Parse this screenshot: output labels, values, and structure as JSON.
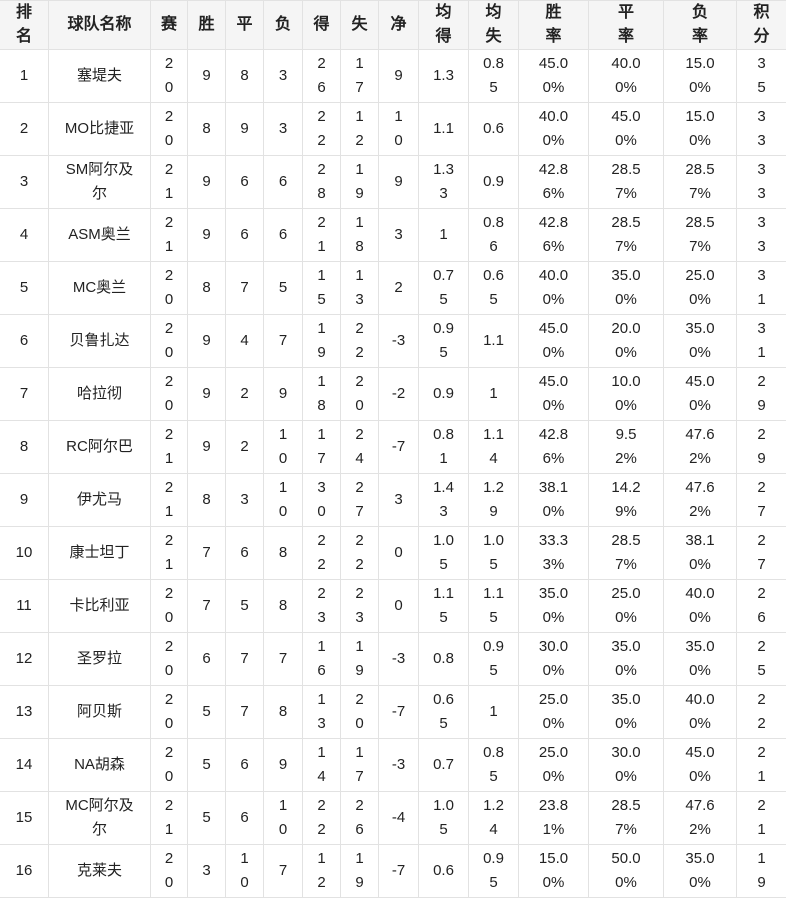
{
  "headers": [
    "排名",
    "球队名称",
    "赛",
    "胜",
    "平",
    "负",
    "得",
    "失",
    "净",
    "均得",
    "均失",
    "胜率",
    "平率",
    "负率",
    "积分"
  ],
  "rows": [
    [
      "1",
      "塞堤夫",
      "20",
      "9",
      "8",
      "3",
      "26",
      "17",
      "9",
      "1.3",
      "0.85",
      "45.00%",
      "40.00%",
      "15.00%",
      "35"
    ],
    [
      "2",
      "MO比捷亚",
      "20",
      "8",
      "9",
      "3",
      "22",
      "12",
      "10",
      "1.1",
      "0.6",
      "40.00%",
      "45.00%",
      "15.00%",
      "33"
    ],
    [
      "3",
      "SM阿尔及尔",
      "21",
      "9",
      "6",
      "6",
      "28",
      "19",
      "9",
      "1.33",
      "0.9",
      "42.86%",
      "28.57%",
      "28.57%",
      "33"
    ],
    [
      "4",
      "ASM奥兰",
      "21",
      "9",
      "6",
      "6",
      "21",
      "18",
      "3",
      "1",
      "0.86",
      "42.86%",
      "28.57%",
      "28.57%",
      "33"
    ],
    [
      "5",
      "MC奥兰",
      "20",
      "8",
      "7",
      "5",
      "15",
      "13",
      "2",
      "0.75",
      "0.65",
      "40.00%",
      "35.00%",
      "25.00%",
      "31"
    ],
    [
      "6",
      "贝鲁扎达",
      "20",
      "9",
      "4",
      "7",
      "19",
      "22",
      "-3",
      "0.95",
      "1.1",
      "45.00%",
      "20.00%",
      "35.00%",
      "31"
    ],
    [
      "7",
      "哈拉彻",
      "20",
      "9",
      "2",
      "9",
      "18",
      "20",
      "-2",
      "0.9",
      "1",
      "45.00%",
      "10.00%",
      "45.00%",
      "29"
    ],
    [
      "8",
      "RC阿尔巴",
      "21",
      "9",
      "2",
      "10",
      "17",
      "24",
      "-7",
      "0.81",
      "1.14",
      "42.86%",
      "9.52%",
      "47.62%",
      "29"
    ],
    [
      "9",
      "伊尤马",
      "21",
      "8",
      "3",
      "10",
      "30",
      "27",
      "3",
      "1.43",
      "1.29",
      "38.10%",
      "14.29%",
      "47.62%",
      "27"
    ],
    [
      "10",
      "康士坦丁",
      "21",
      "7",
      "6",
      "8",
      "22",
      "22",
      "0",
      "1.05",
      "1.05",
      "33.33%",
      "28.57%",
      "38.10%",
      "27"
    ],
    [
      "11",
      "卡比利亚",
      "20",
      "7",
      "5",
      "8",
      "23",
      "23",
      "0",
      "1.15",
      "1.15",
      "35.00%",
      "25.00%",
      "40.00%",
      "26"
    ],
    [
      "12",
      "圣罗拉",
      "20",
      "6",
      "7",
      "7",
      "16",
      "19",
      "-3",
      "0.8",
      "0.95",
      "30.00%",
      "35.00%",
      "35.00%",
      "25"
    ],
    [
      "13",
      "阿贝斯",
      "20",
      "5",
      "7",
      "8",
      "13",
      "20",
      "-7",
      "0.65",
      "1",
      "25.00%",
      "35.00%",
      "40.00%",
      "22"
    ],
    [
      "14",
      "NA胡森",
      "20",
      "5",
      "6",
      "9",
      "14",
      "17",
      "-3",
      "0.7",
      "0.85",
      "25.00%",
      "30.00%",
      "45.00%",
      "21"
    ],
    [
      "15",
      "MC阿尔及尔",
      "21",
      "5",
      "6",
      "10",
      "22",
      "26",
      "-4",
      "1.05",
      "1.24",
      "23.81%",
      "28.57%",
      "47.62%",
      "21"
    ],
    [
      "16",
      "克莱夫",
      "20",
      "3",
      "10",
      "7",
      "12",
      "19",
      "-7",
      "0.6",
      "0.95",
      "15.00%",
      "50.00%",
      "35.00%",
      "19"
    ]
  ]
}
